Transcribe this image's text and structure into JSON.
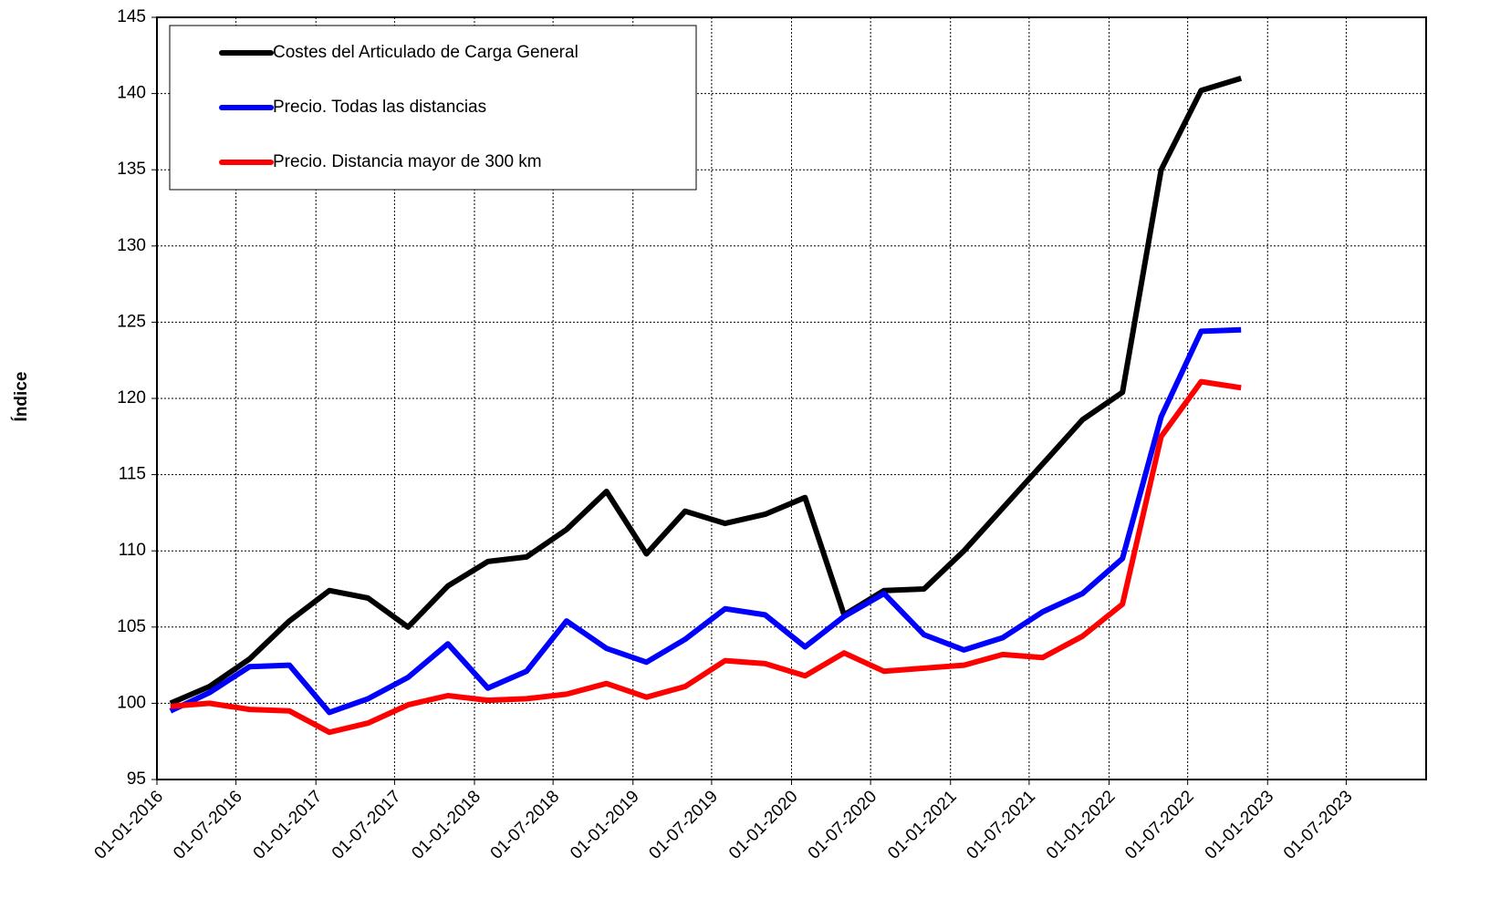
{
  "chart_data": {
    "type": "line",
    "y_label": "Índice",
    "x": [
      "01-02-2016",
      "01-05-2016",
      "01-08-2016",
      "01-11-2016",
      "01-02-2017",
      "01-05-2017",
      "01-08-2017",
      "01-11-2017",
      "01-02-2018",
      "01-05-2018",
      "01-08-2018",
      "01-11-2018",
      "01-02-2019",
      "01-05-2019",
      "01-08-2019",
      "01-11-2019",
      "01-02-2020",
      "01-05-2020",
      "01-08-2020",
      "01-11-2020",
      "01-02-2021",
      "01-05-2021",
      "01-08-2021",
      "01-11-2021",
      "01-02-2022",
      "01-05-2022",
      "01-08-2022",
      "01-11-2022"
    ],
    "series": [
      {
        "name": "Costes del Articulado de Carga General",
        "color": "#000000",
        "values": [
          100,
          101.1,
          102.9,
          105.4,
          107.4,
          106.9,
          105.0,
          107.7,
          109.3,
          109.6,
          111.4,
          113.9,
          109.8,
          112.6,
          111.8,
          112.4,
          113.5,
          105.8,
          107.4,
          107.5,
          110.0,
          112.8,
          115.7,
          118.6,
          120.4,
          135.0,
          140.2,
          141.0
        ]
      },
      {
        "name": "Precio. Todas las distancias",
        "color": "#0000ff",
        "values": [
          99.5,
          100.7,
          102.4,
          102.5,
          99.4,
          100.3,
          101.7,
          103.9,
          101.0,
          102.1,
          105.4,
          103.6,
          102.7,
          104.2,
          106.2,
          105.8,
          103.7,
          105.7,
          107.2,
          104.5,
          103.5,
          104.3,
          106.0,
          107.2,
          109.5,
          118.8,
          124.4,
          124.5
        ]
      },
      {
        "name": "Precio. Distancia mayor de 300 km",
        "color": "#ff0000",
        "values": [
          99.8,
          100.0,
          99.6,
          99.5,
          98.1,
          98.7,
          99.9,
          100.5,
          100.2,
          100.3,
          100.6,
          101.3,
          100.4,
          101.1,
          102.8,
          102.6,
          101.8,
          103.3,
          102.1,
          102.3,
          102.5,
          103.2,
          103.0,
          104.4,
          106.5,
          117.5,
          121.1,
          120.7
        ]
      }
    ],
    "xlim": [
      "01-01-2016",
      "01-01-2024"
    ],
    "xticks": [
      "01-01-2016",
      "01-07-2016",
      "01-01-2017",
      "01-07-2017",
      "01-01-2018",
      "01-07-2018",
      "01-01-2019",
      "01-07-2019",
      "01-01-2020",
      "01-07-2020",
      "01-01-2021",
      "01-07-2021",
      "01-01-2022",
      "01-07-2022",
      "01-01-2023",
      "01-07-2023"
    ],
    "ylim": [
      95,
      145
    ],
    "yticks": [
      95,
      100,
      105,
      110,
      115,
      120,
      125,
      130,
      135,
      140,
      145
    ],
    "grid": true,
    "legend": "upper-left"
  }
}
